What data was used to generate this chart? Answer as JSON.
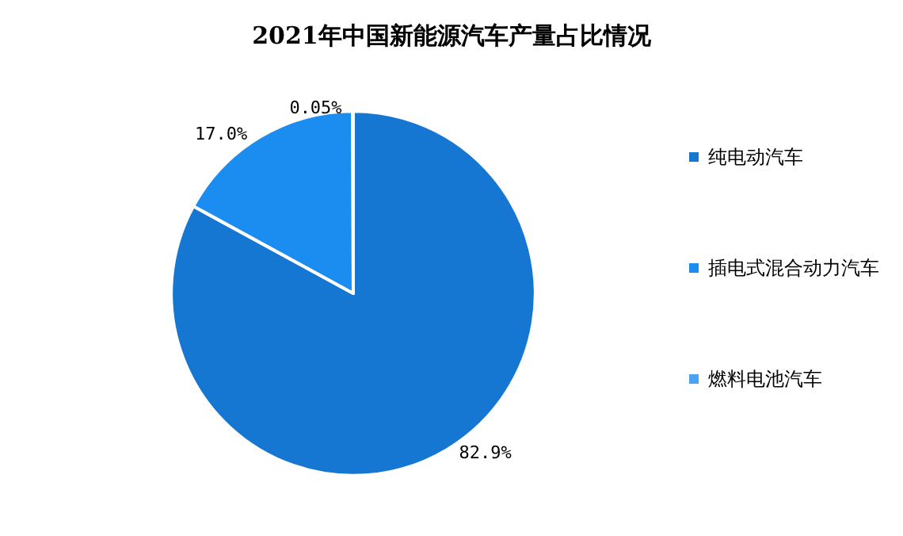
{
  "chart_data": {
    "type": "pie",
    "title": "2021年中国新能源汽车产量占比情况",
    "categories": [
      "纯电动汽车",
      "插电式混合动力汽车",
      "燃料电池汽车"
    ],
    "values": [
      82.9,
      17.0,
      0.05
    ],
    "value_labels": [
      "82.9%",
      "17.0%",
      "0.05%"
    ],
    "colors": [
      "#1677d2",
      "#1b8cf0",
      "#4ba3f5"
    ],
    "legend": "right"
  }
}
